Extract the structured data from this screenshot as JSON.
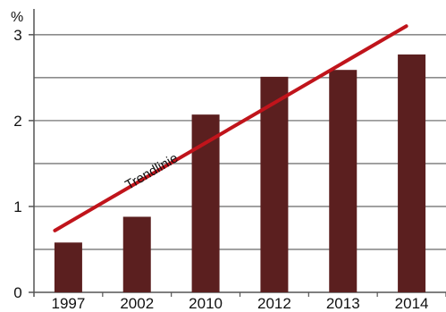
{
  "chart_data": {
    "type": "bar",
    "title": "",
    "xlabel": "",
    "ylabel": "%",
    "categories": [
      "1997",
      "2002",
      "2010",
      "2012",
      "2013",
      "2014"
    ],
    "values": [
      0.58,
      0.88,
      2.07,
      2.51,
      2.59,
      2.77
    ],
    "ylim": [
      0,
      3.3
    ],
    "yticks": [
      0,
      1,
      2,
      3
    ],
    "grid": true,
    "trendline": {
      "label": "Trendlinie",
      "start": [
        0.72
      ],
      "end": [
        3.1
      ]
    },
    "colors": {
      "bar": "#5b1f1f",
      "trend": "#c0141b",
      "grid": "#8c8c8c"
    }
  }
}
